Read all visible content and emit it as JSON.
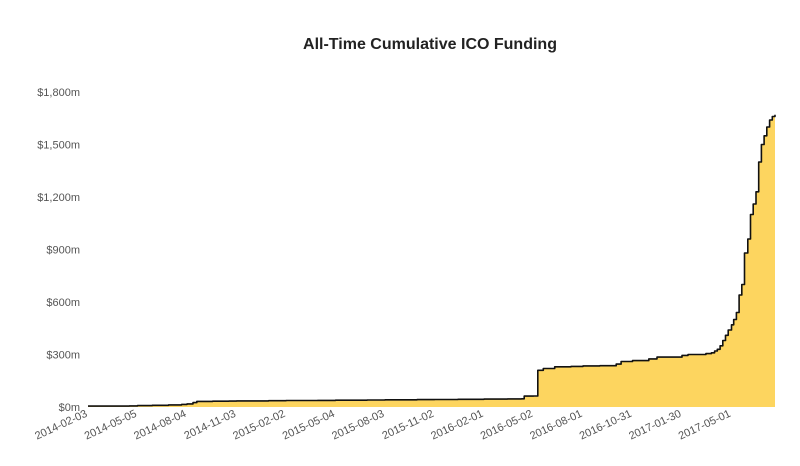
{
  "chart_data": {
    "type": "area",
    "title": "All-Time Cumulative ICO Funding",
    "xlabel": "",
    "ylabel": "",
    "ylim": [
      0,
      1800
    ],
    "y_ticks": [
      0,
      300,
      600,
      900,
      1200,
      1500,
      1800
    ],
    "y_tick_labels": [
      "$0m",
      "$300m",
      "$600m",
      "$900m",
      "$1,200m",
      "$1,500m",
      "$1,800m"
    ],
    "x_range": [
      "2014-02-03",
      "2017-07-20"
    ],
    "x_ticks": [
      "2014-02-03",
      "2014-05-05",
      "2014-08-04",
      "2014-11-03",
      "2015-02-02",
      "2015-05-04",
      "2015-08-03",
      "2015-11-02",
      "2016-02-01",
      "2016-05-02",
      "2016-08-01",
      "2016-10-31",
      "2017-01-30",
      "2017-05-01"
    ],
    "grid": false,
    "fill_color": "#fdd55f",
    "line_color": "#111111",
    "series": [
      {
        "x": [
          "2014-02-03",
          "2014-03-15",
          "2014-04-20",
          "2014-05-05",
          "2014-06-01",
          "2014-07-01",
          "2014-07-25",
          "2014-08-04",
          "2014-08-15",
          "2014-08-22",
          "2014-09-20",
          "2014-10-20",
          "2014-11-03",
          "2015-01-01",
          "2015-02-02",
          "2015-04-01",
          "2015-05-04",
          "2015-07-01",
          "2015-08-03",
          "2015-10-01",
          "2015-11-02",
          "2015-12-15",
          "2016-02-01",
          "2016-03-15",
          "2016-04-10",
          "2016-04-15",
          "2016-05-02",
          "2016-05-10",
          "2016-05-20",
          "2016-06-10",
          "2016-07-10",
          "2016-08-01",
          "2016-09-01",
          "2016-10-01",
          "2016-10-10",
          "2016-10-31",
          "2016-11-30",
          "2016-12-15",
          "2017-01-30",
          "2017-02-10",
          "2017-02-28",
          "2017-03-15",
          "2017-03-25",
          "2017-03-31",
          "2017-04-05",
          "2017-04-10",
          "2017-04-15",
          "2017-04-20",
          "2017-04-25",
          "2017-05-01",
          "2017-05-05",
          "2017-05-10",
          "2017-05-15",
          "2017-05-20",
          "2017-05-25",
          "2017-05-31",
          "2017-06-05",
          "2017-06-10",
          "2017-06-15",
          "2017-06-20",
          "2017-06-25",
          "2017-06-30",
          "2017-07-05",
          "2017-07-10",
          "2017-07-15",
          "2017-07-20"
        ],
        "y": [
          5,
          5,
          6,
          8,
          10,
          12,
          15,
          18,
          25,
          32,
          33,
          34,
          35,
          36,
          37,
          38,
          39,
          40,
          41,
          42,
          43,
          44,
          45,
          46,
          47,
          62,
          63,
          210,
          220,
          230,
          232,
          235,
          236,
          245,
          260,
          265,
          275,
          285,
          295,
          300,
          300,
          305,
          310,
          320,
          330,
          350,
          380,
          410,
          440,
          470,
          500,
          540,
          640,
          700,
          880,
          960,
          1100,
          1160,
          1230,
          1400,
          1500,
          1550,
          1600,
          1640,
          1660,
          1670
        ]
      }
    ]
  }
}
